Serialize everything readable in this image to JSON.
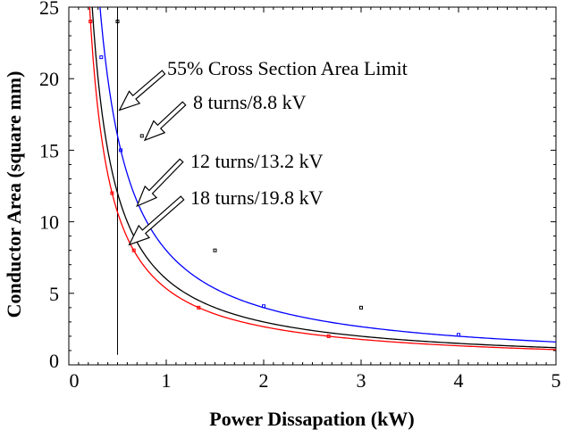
{
  "chart_data": {
    "type": "line",
    "title": "",
    "xlabel": "Power Dissapation (kW)",
    "ylabel": "Conductor Area (square mm)",
    "xlim": [
      0,
      5
    ],
    "ylim": [
      0,
      25
    ],
    "x_ticks": [
      0,
      1,
      2,
      3,
      4,
      5
    ],
    "y_ticks": [
      0,
      5,
      10,
      15,
      20,
      25
    ],
    "grid": false,
    "legend": "none",
    "series": [
      {
        "color": "#000000",
        "curve_constant": 6.0,
        "markers": [
          {
            "x": 0.5,
            "y": 24
          },
          {
            "x": 0.75,
            "y": 16
          },
          {
            "x": 1.5,
            "y": 8
          },
          {
            "x": 3.0,
            "y": 4
          }
        ]
      },
      {
        "color": "#0000ff",
        "curve_constant": 8.0,
        "markers": [
          {
            "x": 0.333,
            "y": 21.5
          },
          {
            "x": 0.533,
            "y": 15
          },
          {
            "x": 2.0,
            "y": 4.1
          },
          {
            "x": 4.0,
            "y": 2.1
          }
        ]
      },
      {
        "color": "#ff0000",
        "curve_constant": 5.33,
        "markers": [
          {
            "x": 0.222,
            "y": 24
          },
          {
            "x": 0.444,
            "y": 12
          },
          {
            "x": 0.667,
            "y": 8
          },
          {
            "x": 1.333,
            "y": 4
          },
          {
            "x": 2.667,
            "y": 2
          }
        ]
      }
    ],
    "vertical_line": {
      "x": 0.5,
      "y_from": 0.7,
      "y_to": 25
    },
    "annotations": [
      {
        "text": "55% Cross Section Area Limit",
        "arrow_to": {
          "x": 0.52,
          "y": 17.8
        }
      },
      {
        "text": "8 turns/8.8 kV",
        "arrow_to": {
          "x": 0.78,
          "y": 15.7
        }
      },
      {
        "text": "12 turns/13.2 kV",
        "arrow_to": {
          "x": 0.7,
          "y": 11.1
        }
      },
      {
        "text": "18 turns/19.8 kV",
        "arrow_to": {
          "x": 0.62,
          "y": 8.4
        }
      }
    ]
  }
}
